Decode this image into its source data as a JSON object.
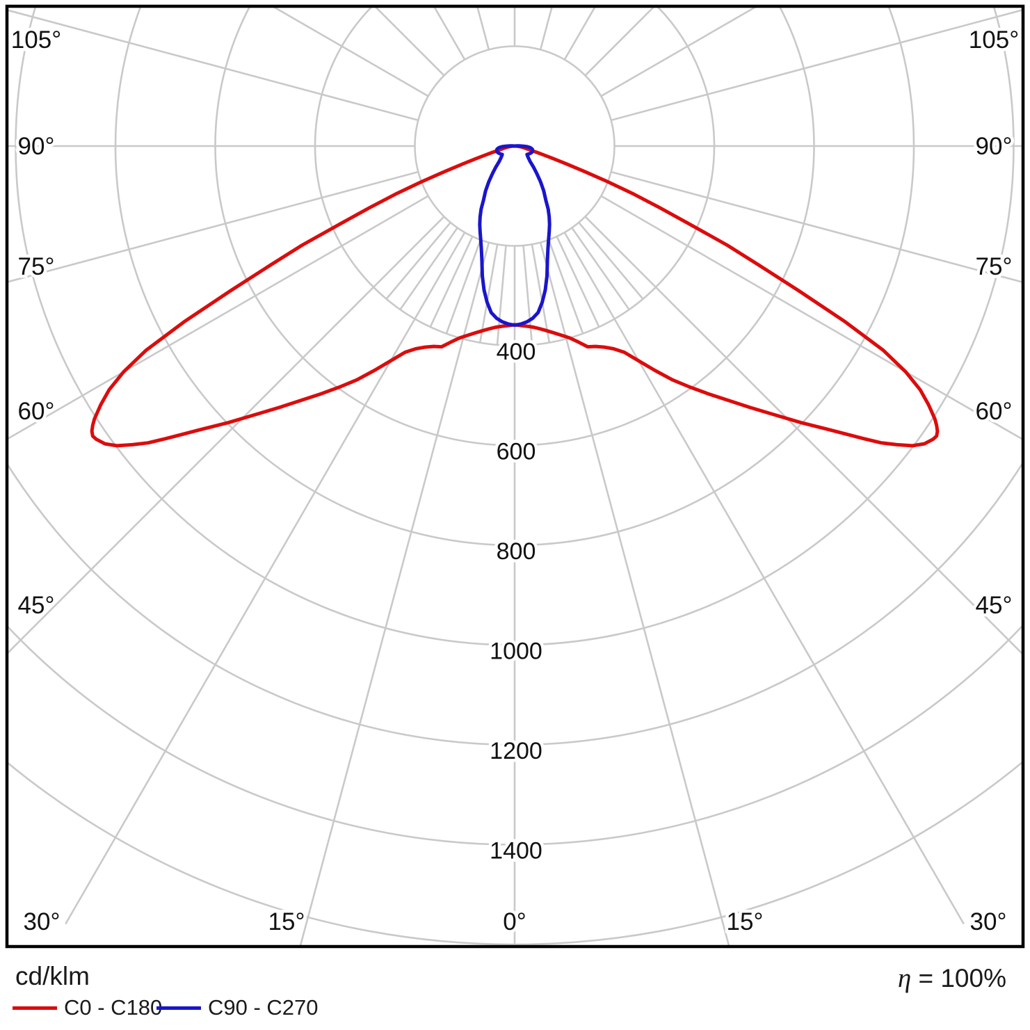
{
  "page": {
    "background": "#ffffff"
  },
  "footer": {
    "unit_label": "cd/klm",
    "efficiency_symbol": "η",
    "efficiency_value": "= 100%",
    "legend": [
      {
        "label": "C0 - C180",
        "color": "#dc0c0c"
      },
      {
        "label": "C90 - C270",
        "color": "#1a15cc"
      }
    ]
  },
  "chart_data": {
    "type": "line",
    "projection": "polar",
    "units": "cd/klm",
    "efficiency": "η = 100%",
    "grid": {
      "color": "#c9c9c9",
      "frame_color": "#000000",
      "ring_step": 200,
      "inner_ring": 200,
      "outer_ring": 1600,
      "major_angle_step_deg": 15,
      "minor_angle_step_deg": 5,
      "minor_angle_range_deg": 45,
      "zero_direction": "down"
    },
    "radial_axis": {
      "tick_values": [
        400,
        600,
        800,
        1000,
        1200,
        1400
      ],
      "label_suffix": ""
    },
    "angle_axis": {
      "side_label_degrees": [
        105,
        90,
        75,
        60,
        45
      ],
      "bottom_label_degrees": [
        30,
        15,
        0,
        15,
        30
      ],
      "label_suffix": "°"
    },
    "series": [
      {
        "name": "C0 - C180",
        "color": "#dc0c0c",
        "symmetric": true,
        "gamma_deg": [
          0,
          2,
          4,
          6,
          8,
          10,
          12,
          14,
          16,
          18,
          20,
          22,
          24,
          26,
          28,
          30,
          32,
          34,
          36,
          38,
          40,
          42,
          44,
          46,
          48,
          50,
          51,
          52,
          53,
          54,
          55,
          55.5,
          56,
          56.5,
          57,
          58,
          59,
          60,
          61,
          62,
          63,
          64,
          65,
          66,
          67,
          68,
          69,
          70,
          71,
          72,
          73,
          74,
          75,
          77,
          80,
          83,
          86,
          90
        ],
        "cd_per_klm": [
          358,
          360,
          362,
          365,
          370,
          376,
          383,
          391,
          400,
          413,
          428,
          433,
          441,
          452,
          468,
          497,
          530,
          565,
          597,
          630,
          665,
          705,
          748,
          798,
          850,
          912,
          945,
          972,
          998,
          1015,
          1024,
          1026,
          1022,
          1014,
          1004,
          978,
          948,
          905,
          845,
          750,
          640,
          545,
          470,
          380,
          315,
          258,
          200,
          148,
          108,
          80,
          60,
          48,
          38,
          27,
          18,
          12,
          6,
          0
        ]
      },
      {
        "name": "C90 - C270",
        "color": "#1a15cc",
        "symmetric": true,
        "gamma_deg": [
          0,
          2,
          4,
          6,
          8,
          10,
          12,
          14,
          16,
          18,
          20,
          22,
          24,
          26,
          28,
          30,
          33,
          36,
          39,
          42,
          45,
          48,
          52,
          56,
          60,
          64,
          68,
          72,
          76,
          80,
          83,
          85,
          87,
          89,
          90,
          92,
          94,
          95
        ],
        "cd_per_klm": [
          359,
          357,
          353,
          347,
          337,
          318,
          295,
          268,
          238,
          216,
          199,
          185,
          172,
          158,
          143,
          125,
          107,
          88,
          70,
          56,
          44,
          38,
          33,
          30,
          32,
          34,
          36,
          37,
          37,
          36,
          33,
          30,
          25,
          18,
          14,
          9,
          4,
          0
        ]
      }
    ]
  }
}
